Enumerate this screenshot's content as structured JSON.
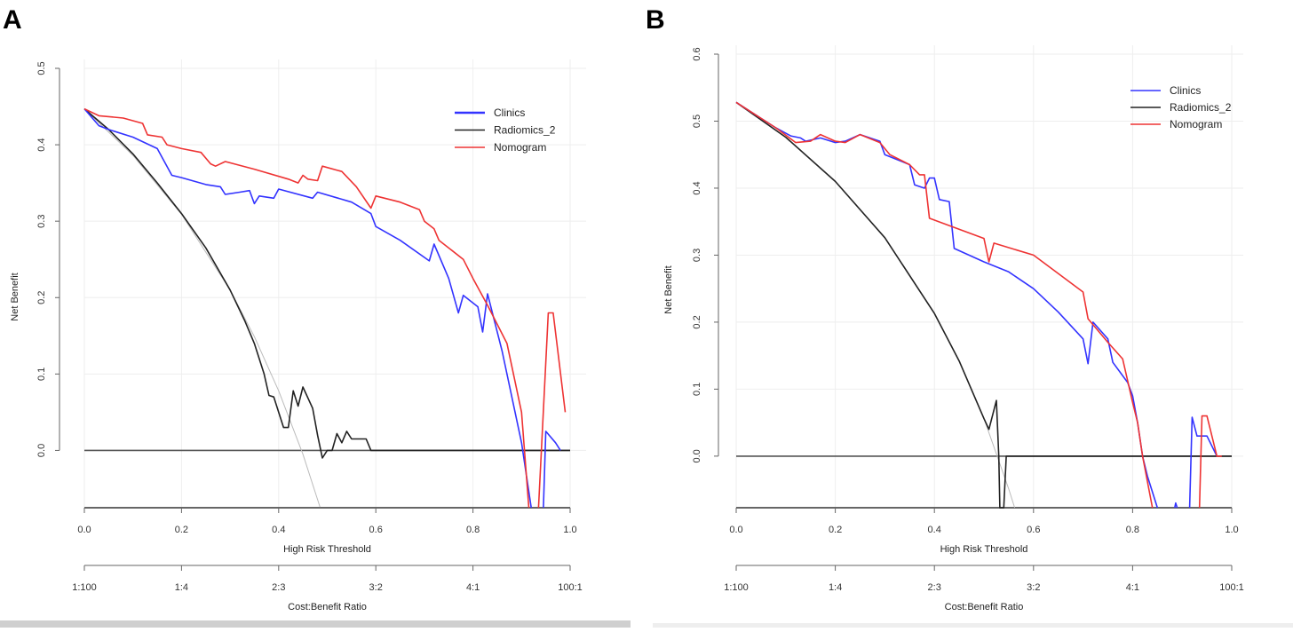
{
  "colors": {
    "clinics": "#3333ff",
    "radiomics": "#222222",
    "nomogram": "#ee3333",
    "treat_all": "#bbbbbb",
    "treat_none": "#555555"
  },
  "chart_data": [
    {
      "panel_label": "A",
      "type": "line",
      "xlabel": "High Risk Threshold",
      "ylabel": "Net Benefit",
      "x2label": "Cost:Benefit Ratio",
      "xlim": [
        0,
        1
      ],
      "ylim": [
        -0.075,
        0.5
      ],
      "xticks": [
        "0.0",
        "0.2",
        "0.4",
        "0.6",
        "0.8",
        "1.0"
      ],
      "yticks": [
        "0.0",
        "0.1",
        "0.2",
        "0.3",
        "0.4",
        "0.5"
      ],
      "x2ticks": [
        "1:100",
        "1:4",
        "2:3",
        "3:2",
        "4:1",
        "100:1"
      ],
      "legend": [
        "Clinics",
        "Radiomics_2",
        "Nomogram"
      ],
      "legend_position": "top-right",
      "grid": true,
      "series": [
        {
          "name": "Clinics",
          "color_key": "clinics",
          "points": [
            [
              0,
              0.447
            ],
            [
              0.03,
              0.425
            ],
            [
              0.05,
              0.42
            ],
            [
              0.1,
              0.41
            ],
            [
              0.15,
              0.395
            ],
            [
              0.18,
              0.36
            ],
            [
              0.2,
              0.357
            ],
            [
              0.25,
              0.348
            ],
            [
              0.28,
              0.345
            ],
            [
              0.29,
              0.335
            ],
            [
              0.32,
              0.338
            ],
            [
              0.34,
              0.34
            ],
            [
              0.35,
              0.323
            ],
            [
              0.36,
              0.333
            ],
            [
              0.39,
              0.33
            ],
            [
              0.4,
              0.342
            ],
            [
              0.47,
              0.33
            ],
            [
              0.48,
              0.338
            ],
            [
              0.55,
              0.325
            ],
            [
              0.59,
              0.31
            ],
            [
              0.6,
              0.293
            ],
            [
              0.65,
              0.275
            ],
            [
              0.71,
              0.248
            ],
            [
              0.72,
              0.27
            ],
            [
              0.75,
              0.225
            ],
            [
              0.77,
              0.18
            ],
            [
              0.78,
              0.203
            ],
            [
              0.81,
              0.188
            ],
            [
              0.82,
              0.155
            ],
            [
              0.83,
              0.205
            ],
            [
              0.86,
              0.13
            ],
            [
              0.9,
              0.01
            ],
            [
              0.92,
              -0.075
            ],
            null,
            [
              0.945,
              -0.075
            ],
            [
              0.95,
              0.025
            ],
            [
              0.97,
              0.01
            ],
            [
              0.98,
              0.0
            ]
          ]
        },
        {
          "name": "Radiomics_2",
          "color_key": "radiomics",
          "points": [
            [
              0,
              0.447
            ],
            [
              0.05,
              0.42
            ],
            [
              0.1,
              0.388
            ],
            [
              0.15,
              0.35
            ],
            [
              0.2,
              0.31
            ],
            [
              0.25,
              0.265
            ],
            [
              0.3,
              0.21
            ],
            [
              0.33,
              0.17
            ],
            [
              0.35,
              0.14
            ],
            [
              0.37,
              0.1
            ],
            [
              0.38,
              0.072
            ],
            [
              0.39,
              0.07
            ],
            [
              0.41,
              0.03
            ],
            [
              0.42,
              0.03
            ],
            [
              0.43,
              0.078
            ],
            [
              0.44,
              0.058
            ],
            [
              0.45,
              0.083
            ],
            [
              0.47,
              0.055
            ],
            [
              0.48,
              0.02
            ],
            [
              0.49,
              -0.01
            ],
            [
              0.5,
              0.0
            ],
            [
              0.51,
              0.0
            ],
            [
              0.52,
              0.022
            ],
            [
              0.53,
              0.01
            ],
            [
              0.54,
              0.025
            ],
            [
              0.55,
              0.015
            ],
            [
              0.58,
              0.015
            ],
            [
              0.59,
              0
            ],
            [
              1.0,
              0
            ]
          ]
        },
        {
          "name": "Nomogram",
          "color_key": "nomogram",
          "points": [
            [
              0,
              0.447
            ],
            [
              0.03,
              0.438
            ],
            [
              0.08,
              0.435
            ],
            [
              0.12,
              0.428
            ],
            [
              0.13,
              0.413
            ],
            [
              0.16,
              0.41
            ],
            [
              0.17,
              0.4
            ],
            [
              0.2,
              0.395
            ],
            [
              0.24,
              0.39
            ],
            [
              0.26,
              0.375
            ],
            [
              0.27,
              0.372
            ],
            [
              0.29,
              0.378
            ],
            [
              0.35,
              0.368
            ],
            [
              0.42,
              0.355
            ],
            [
              0.44,
              0.35
            ],
            [
              0.45,
              0.36
            ],
            [
              0.46,
              0.355
            ],
            [
              0.48,
              0.353
            ],
            [
              0.49,
              0.372
            ],
            [
              0.53,
              0.365
            ],
            [
              0.56,
              0.345
            ],
            [
              0.59,
              0.317
            ],
            [
              0.6,
              0.333
            ],
            [
              0.65,
              0.325
            ],
            [
              0.69,
              0.315
            ],
            [
              0.7,
              0.3
            ],
            [
              0.72,
              0.29
            ],
            [
              0.73,
              0.275
            ],
            [
              0.78,
              0.25
            ],
            [
              0.8,
              0.225
            ],
            [
              0.83,
              0.19
            ],
            [
              0.87,
              0.14
            ],
            [
              0.9,
              0.05
            ],
            [
              0.915,
              -0.075
            ],
            null,
            [
              0.935,
              -0.075
            ],
            [
              0.955,
              0.18
            ],
            [
              0.965,
              0.18
            ],
            [
              0.99,
              0.05
            ]
          ]
        },
        {
          "name": "Treat all",
          "color_key": "treat_all",
          "points": [
            [
              0,
              0.447
            ],
            [
              0.1,
              0.386
            ],
            [
              0.2,
              0.309
            ],
            [
              0.3,
              0.21
            ],
            [
              0.35,
              0.149
            ],
            [
              0.4,
              0.078
            ],
            [
              0.45,
              -0.005
            ],
            [
              0.485,
              -0.074
            ]
          ]
        },
        {
          "name": "Treat none",
          "color_key": "treat_none",
          "points": [
            [
              0,
              0
            ],
            [
              1,
              0
            ]
          ]
        }
      ]
    },
    {
      "panel_label": "B",
      "type": "line",
      "xlabel": "High Risk Threshold",
      "ylabel": "Net Benefit",
      "x2label": "Cost:Benefit Ratio",
      "xlim": [
        0,
        1
      ],
      "ylim": [
        -0.077,
        0.6
      ],
      "xticks": [
        "0.0",
        "0.2",
        "0.4",
        "0.6",
        "0.8",
        "1.0"
      ],
      "yticks": [
        "0.0",
        "0.1",
        "0.2",
        "0.3",
        "0.4",
        "0.5",
        "0.6"
      ],
      "x2ticks": [
        "1:100",
        "1:4",
        "2:3",
        "3:2",
        "4:1",
        "100:1"
      ],
      "legend": [
        "Clinics",
        "Radiomics_2",
        "Nomogram"
      ],
      "legend_position": "top-right",
      "grid": true,
      "series": [
        {
          "name": "Clinics",
          "color_key": "clinics",
          "points": [
            [
              0,
              0.528
            ],
            [
              0.08,
              0.49
            ],
            [
              0.11,
              0.478
            ],
            [
              0.13,
              0.475
            ],
            [
              0.14,
              0.47
            ],
            [
              0.17,
              0.475
            ],
            [
              0.2,
              0.468
            ],
            [
              0.22,
              0.47
            ],
            [
              0.25,
              0.48
            ],
            [
              0.29,
              0.47
            ],
            [
              0.3,
              0.45
            ],
            [
              0.35,
              0.435
            ],
            [
              0.36,
              0.405
            ],
            [
              0.38,
              0.4
            ],
            [
              0.39,
              0.415
            ],
            [
              0.4,
              0.415
            ],
            [
              0.41,
              0.383
            ],
            [
              0.43,
              0.38
            ],
            [
              0.44,
              0.31
            ],
            [
              0.5,
              0.29
            ],
            [
              0.55,
              0.275
            ],
            [
              0.6,
              0.25
            ],
            [
              0.65,
              0.215
            ],
            [
              0.7,
              0.175
            ],
            [
              0.71,
              0.138
            ],
            [
              0.72,
              0.2
            ],
            [
              0.75,
              0.175
            ],
            [
              0.76,
              0.14
            ],
            [
              0.79,
              0.11
            ],
            [
              0.8,
              0.09
            ],
            [
              0.81,
              0.05
            ],
            [
              0.82,
              0.0
            ],
            [
              0.83,
              -0.03
            ],
            [
              0.85,
              -0.077
            ],
            null,
            [
              0.885,
              -0.077
            ],
            [
              0.887,
              -0.07
            ],
            [
              0.89,
              -0.077
            ],
            null,
            [
              0.915,
              -0.077
            ],
            [
              0.92,
              0.058
            ],
            [
              0.93,
              0.03
            ],
            [
              0.95,
              0.03
            ],
            [
              0.97,
              0.0
            ]
          ]
        },
        {
          "name": "Radiomics_2",
          "color_key": "radiomics",
          "points": [
            [
              0,
              0.528
            ],
            [
              0.1,
              0.476
            ],
            [
              0.2,
              0.41
            ],
            [
              0.3,
              0.326
            ],
            [
              0.4,
              0.213
            ],
            [
              0.45,
              0.142
            ],
            [
              0.5,
              0.056
            ],
            [
              0.51,
              0.04
            ],
            [
              0.525,
              0.083
            ],
            [
              0.53,
              0
            ],
            [
              0.532,
              -0.077
            ],
            [
              0.54,
              -0.077
            ],
            [
              0.545,
              0
            ],
            [
              1.0,
              0
            ]
          ]
        },
        {
          "name": "Nomogram",
          "color_key": "nomogram",
          "points": [
            [
              0,
              0.528
            ],
            [
              0.08,
              0.49
            ],
            [
              0.12,
              0.468
            ],
            [
              0.15,
              0.47
            ],
            [
              0.17,
              0.48
            ],
            [
              0.2,
              0.47
            ],
            [
              0.22,
              0.468
            ],
            [
              0.25,
              0.48
            ],
            [
              0.29,
              0.468
            ],
            [
              0.31,
              0.45
            ],
            [
              0.35,
              0.435
            ],
            [
              0.37,
              0.42
            ],
            [
              0.38,
              0.42
            ],
            [
              0.39,
              0.355
            ],
            [
              0.5,
              0.325
            ],
            [
              0.51,
              0.29
            ],
            [
              0.52,
              0.318
            ],
            [
              0.6,
              0.3
            ],
            [
              0.7,
              0.245
            ],
            [
              0.71,
              0.205
            ],
            [
              0.75,
              0.17
            ],
            [
              0.78,
              0.145
            ],
            [
              0.8,
              0.08
            ],
            [
              0.81,
              0.05
            ],
            [
              0.82,
              0.0
            ],
            [
              0.84,
              -0.077
            ],
            null,
            [
              0.935,
              -0.077
            ],
            [
              0.94,
              0.06
            ],
            [
              0.95,
              0.06
            ],
            [
              0.97,
              0.0
            ],
            [
              0.98,
              0
            ]
          ]
        },
        {
          "name": "Treat all",
          "color_key": "treat_all",
          "points": [
            [
              0,
              0.528
            ],
            [
              0.1,
              0.476
            ],
            [
              0.2,
              0.41
            ],
            [
              0.3,
              0.326
            ],
            [
              0.4,
              0.213
            ],
            [
              0.45,
              0.142
            ],
            [
              0.5,
              0.056
            ],
            [
              0.55,
              -0.049
            ],
            [
              0.562,
              -0.077
            ]
          ]
        },
        {
          "name": "Treat none",
          "color_key": "treat_none",
          "points": [
            [
              0,
              0
            ],
            [
              1,
              0
            ]
          ]
        }
      ]
    }
  ]
}
